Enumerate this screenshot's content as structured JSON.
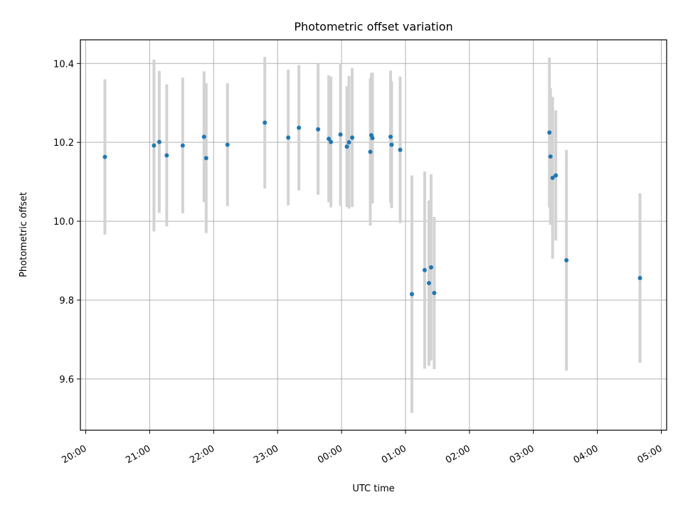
{
  "chart_data": {
    "type": "scatter",
    "title": "Photometric offset variation",
    "xlabel": "UTC time",
    "ylabel": "Photometric offset",
    "x_axis_kind": "time",
    "xlim": [
      "2000-01-01 19:55",
      "2000-01-02 05:05"
    ],
    "ylim": [
      9.47,
      10.46
    ],
    "grid": true,
    "x_ticks": [
      "20:00",
      "21:00",
      "22:00",
      "23:00",
      "00:00",
      "01:00",
      "02:00",
      "03:00",
      "04:00",
      "05:00"
    ],
    "y_ticks": [
      9.6,
      9.8,
      10.0,
      10.2,
      10.4
    ],
    "y_tick_labels": [
      "9.6",
      "9.8",
      "10.0",
      "10.2",
      "10.4"
    ],
    "marker_color": "#1f77b4",
    "errorbar_color": "#d3d3d3",
    "points": [
      {
        "x": "20:18",
        "y": 10.163,
        "yerr": 0.197
      },
      {
        "x": "21:04",
        "y": 10.192,
        "yerr": 0.218
      },
      {
        "x": "21:09",
        "y": 10.201,
        "yerr": 0.18
      },
      {
        "x": "21:16",
        "y": 10.167,
        "yerr": 0.18
      },
      {
        "x": "21:31",
        "y": 10.192,
        "yerr": 0.172
      },
      {
        "x": "21:51",
        "y": 10.214,
        "yerr": 0.166
      },
      {
        "x": "21:53",
        "y": 10.16,
        "yerr": 0.19
      },
      {
        "x": "22:13",
        "y": 10.194,
        "yerr": 0.156
      },
      {
        "x": "22:48",
        "y": 10.25,
        "yerr": 0.167
      },
      {
        "x": "23:10",
        "y": 10.212,
        "yerr": 0.172
      },
      {
        "x": "23:20",
        "y": 10.237,
        "yerr": 0.159
      },
      {
        "x": "23:38",
        "y": 10.233,
        "yerr": 0.166
      },
      {
        "x": "23:48",
        "y": 10.209,
        "yerr": 0.161
      },
      {
        "x": "23:50",
        "y": 10.201,
        "yerr": 0.166
      },
      {
        "x": "23:59",
        "y": 10.22,
        "yerr": 0.181
      },
      {
        "x": "00:05",
        "y": 10.189,
        "yerr": 0.153
      },
      {
        "x": "00:07",
        "y": 10.2,
        "yerr": 0.168
      },
      {
        "x": "00:10",
        "y": 10.212,
        "yerr": 0.176
      },
      {
        "x": "00:27",
        "y": 10.176,
        "yerr": 0.187
      },
      {
        "x": "00:28",
        "y": 10.218,
        "yerr": 0.158
      },
      {
        "x": "00:29",
        "y": 10.211,
        "yerr": 0.166
      },
      {
        "x": "00:46",
        "y": 10.214,
        "yerr": 0.168
      },
      {
        "x": "00:47",
        "y": 10.194,
        "yerr": 0.161
      },
      {
        "x": "00:55",
        "y": 10.181,
        "yerr": 0.186
      },
      {
        "x": "01:06",
        "y": 9.815,
        "yerr": 0.301
      },
      {
        "x": "01:18",
        "y": 9.876,
        "yerr": 0.25
      },
      {
        "x": "01:22",
        "y": 9.843,
        "yerr": 0.21
      },
      {
        "x": "01:24",
        "y": 9.883,
        "yerr": 0.236
      },
      {
        "x": "01:27",
        "y": 9.818,
        "yerr": 0.193
      },
      {
        "x": "03:15",
        "y": 10.225,
        "yerr": 0.19
      },
      {
        "x": "03:16",
        "y": 10.164,
        "yerr": 0.173
      },
      {
        "x": "03:18",
        "y": 10.11,
        "yerr": 0.205
      },
      {
        "x": "03:21",
        "y": 10.116,
        "yerr": 0.165
      },
      {
        "x": "03:31",
        "y": 9.901,
        "yerr": 0.28
      },
      {
        "x": "04:40",
        "y": 9.856,
        "yerr": 0.215
      }
    ]
  }
}
